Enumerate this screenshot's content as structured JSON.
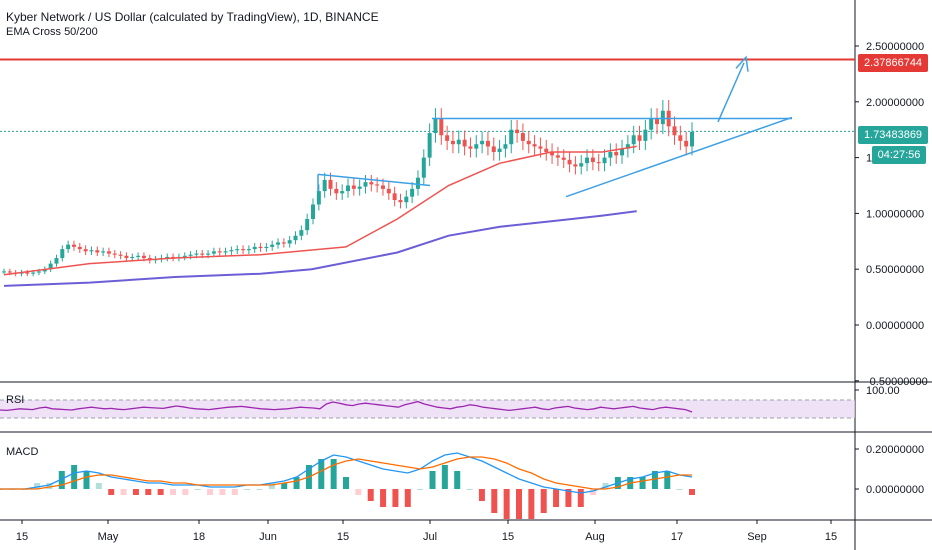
{
  "header": {
    "title": "Kyber Network / US Dollar (calculated by TradingView), 1D, BINANCE",
    "indicator": "EMA Cross 50/200"
  },
  "price_axis": {
    "ticks": [
      "2.50000000",
      "2.00000000",
      "1.50000000",
      "1.00000000",
      "0.50000000",
      "0.00000000",
      "-0.50000000"
    ],
    "resistance_label": "2.37866744",
    "last_price_label": "1.73483869",
    "countdown_label": "04:27:56"
  },
  "rsi": {
    "title": "RSI",
    "tick": "100.00"
  },
  "macd": {
    "title": "MACD",
    "ticks": [
      "0.20000000",
      "0.00000000"
    ]
  },
  "time_axis": {
    "labels": [
      "15",
      "May",
      "18",
      "Jun",
      "15",
      "Jul",
      "15",
      "Aug",
      "17",
      "Sep",
      "15"
    ]
  },
  "colors": {
    "up": "#26a69a",
    "down": "#ef5350",
    "ema50": "#ef5350",
    "ema200": "#6b5ed6",
    "trendline": "#3da0e6",
    "resistance": "#e53935",
    "rsi": "#9c27b0",
    "macd_line": "#2196f3",
    "signal_line": "#ff6d00",
    "last_price": "#26a69a"
  },
  "chart_data": {
    "type": "candlestick",
    "ylim": [
      -0.5,
      2.8
    ],
    "resistance": 2.37866744,
    "last_price": 1.73483869,
    "ohlc_closes_approx": [
      0.48,
      0.47,
      0.46,
      0.47,
      0.46,
      0.47,
      0.48,
      0.5,
      0.55,
      0.6,
      0.68,
      0.72,
      0.7,
      0.68,
      0.66,
      0.67,
      0.65,
      0.66,
      0.64,
      0.63,
      0.62,
      0.6,
      0.61,
      0.62,
      0.6,
      0.58,
      0.59,
      0.6,
      0.61,
      0.6,
      0.61,
      0.62,
      0.63,
      0.64,
      0.63,
      0.64,
      0.66,
      0.65,
      0.66,
      0.67,
      0.68,
      0.67,
      0.68,
      0.7,
      0.69,
      0.7,
      0.72,
      0.74,
      0.73,
      0.76,
      0.8,
      0.85,
      0.95,
      1.08,
      1.2,
      1.3,
      1.22,
      1.18,
      1.2,
      1.25,
      1.22,
      1.24,
      1.28,
      1.26,
      1.25,
      1.22,
      1.18,
      1.12,
      1.1,
      1.15,
      1.22,
      1.32,
      1.5,
      1.72,
      1.85,
      1.7,
      1.65,
      1.62,
      1.66,
      1.6,
      1.58,
      1.62,
      1.65,
      1.6,
      1.55,
      1.58,
      1.62,
      1.75,
      1.72,
      1.65,
      1.62,
      1.6,
      1.58,
      1.55,
      1.52,
      1.5,
      1.48,
      1.44,
      1.42,
      1.45,
      1.5,
      1.46,
      1.45,
      1.5,
      1.55,
      1.52,
      1.58,
      1.62,
      1.7,
      1.65,
      1.75,
      1.85,
      1.8,
      1.92,
      1.78,
      1.7,
      1.65,
      1.6,
      1.73
    ],
    "ema50": {
      "x_frac": [
        0,
        0.1,
        0.2,
        0.3,
        0.4,
        0.46,
        0.52,
        0.58,
        0.64,
        0.7,
        0.74
      ],
      "y": [
        0.45,
        0.55,
        0.6,
        0.63,
        0.7,
        0.95,
        1.25,
        1.45,
        1.55,
        1.55,
        1.6
      ]
    },
    "ema200": {
      "x_frac": [
        0,
        0.1,
        0.2,
        0.3,
        0.36,
        0.46,
        0.52,
        0.58,
        0.64,
        0.7,
        0.74
      ],
      "y": [
        0.35,
        0.38,
        0.43,
        0.46,
        0.5,
        0.65,
        0.8,
        0.88,
        0.93,
        0.98,
        1.02
      ]
    },
    "rsi": [
      55,
      54,
      56,
      58,
      57,
      56,
      60,
      62,
      58,
      57,
      56,
      55,
      58,
      60,
      62,
      60,
      58,
      59,
      57,
      56,
      58,
      60,
      62,
      61,
      60,
      59,
      62,
      65,
      63,
      60,
      58,
      57,
      56,
      58,
      60,
      62,
      63,
      64,
      62,
      60,
      58,
      57,
      56,
      57,
      58,
      60,
      62,
      61,
      60,
      58,
      70,
      75,
      72,
      68,
      66,
      70,
      72,
      70,
      68,
      66,
      64,
      62,
      68,
      72,
      76,
      70,
      66,
      62,
      60,
      58,
      62,
      64,
      68,
      66,
      62,
      60,
      58,
      56,
      54,
      56,
      58,
      60,
      62,
      58,
      56,
      60,
      62,
      64,
      60,
      58,
      56,
      58,
      62,
      60,
      58,
      60,
      62,
      64,
      60,
      58,
      56,
      60,
      62,
      60,
      58,
      56,
      50
    ],
    "macd": [
      0,
      0,
      0,
      0.01,
      0.02,
      0.05,
      0.08,
      0.09,
      0.08,
      0.06,
      0.05,
      0.04,
      0.03,
      0.03,
      0.02,
      0.02,
      0.02,
      0.01,
      0.01,
      0.01,
      0.02,
      0.02,
      0.03,
      0.04,
      0.06,
      0.1,
      0.14,
      0.17,
      0.16,
      0.14,
      0.12,
      0.1,
      0.09,
      0.08,
      0.1,
      0.14,
      0.17,
      0.18,
      0.16,
      0.14,
      0.11,
      0.08,
      0.05,
      0.03,
      0.01,
      0,
      -0.01,
      -0.02,
      -0.01,
      0.01,
      0.03,
      0.05,
      0.06,
      0.08,
      0.09,
      0.07,
      0.06
    ],
    "signal": [
      0,
      0,
      0,
      0,
      0.01,
      0.02,
      0.04,
      0.06,
      0.07,
      0.07,
      0.06,
      0.05,
      0.04,
      0.04,
      0.03,
      0.03,
      0.02,
      0.02,
      0.02,
      0.02,
      0.02,
      0.02,
      0.02,
      0.03,
      0.04,
      0.06,
      0.09,
      0.12,
      0.14,
      0.15,
      0.14,
      0.13,
      0.12,
      0.11,
      0.1,
      0.11,
      0.13,
      0.15,
      0.16,
      0.16,
      0.15,
      0.13,
      0.1,
      0.08,
      0.05,
      0.03,
      0.02,
      0.01,
      0,
      0,
      0.01,
      0.03,
      0.04,
      0.05,
      0.06,
      0.07,
      0.07
    ]
  }
}
